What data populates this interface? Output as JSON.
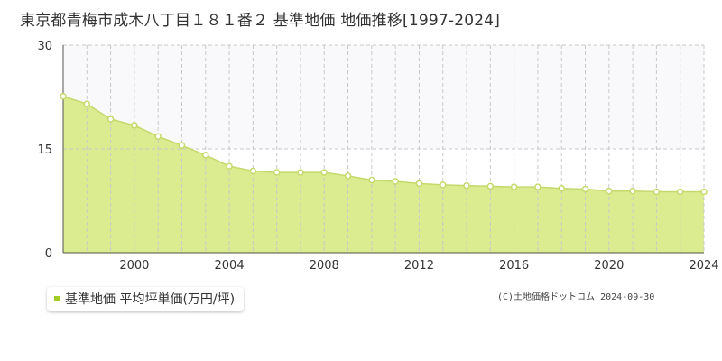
{
  "chart_data": {
    "type": "area",
    "title": "東京都青梅市成木八丁目１８１番２ 基準地価 地価推移[1997-2024]",
    "x": [
      1997,
      1998,
      1999,
      2000,
      2001,
      2002,
      2003,
      2004,
      2005,
      2006,
      2007,
      2008,
      2009,
      2010,
      2011,
      2012,
      2013,
      2014,
      2015,
      2016,
      2017,
      2018,
      2019,
      2020,
      2021,
      2022,
      2023,
      2024
    ],
    "series": [
      {
        "name": "基準地価 平均坪単価(万円/坪)",
        "values": [
          22.6,
          21.5,
          19.3,
          18.4,
          16.8,
          15.5,
          14.1,
          12.5,
          11.8,
          11.6,
          11.6,
          11.6,
          11.1,
          10.5,
          10.3,
          10.0,
          9.8,
          9.7,
          9.6,
          9.5,
          9.5,
          9.3,
          9.2,
          8.9,
          8.9,
          8.8,
          8.8,
          8.8
        ]
      }
    ],
    "xlim": [
      1997,
      2024
    ],
    "ylim": [
      0,
      30
    ],
    "yticks": [
      0,
      15,
      30
    ],
    "xticks": [
      2000,
      2004,
      2008,
      2012,
      2016,
      2020,
      2024
    ],
    "xlabel": "",
    "ylabel": "",
    "grid": true,
    "legend_position": "bottom-left",
    "colors": {
      "fill": "#dbeb8f",
      "line": "#c4d96b",
      "marker_stroke": "#c4d96b",
      "marker_fill": "#ffffff",
      "upper_band": "#f9f9fb",
      "legend_swatch": "#a4cc28"
    }
  },
  "copyright": "(C)土地価格ドットコム 2024-09-30"
}
